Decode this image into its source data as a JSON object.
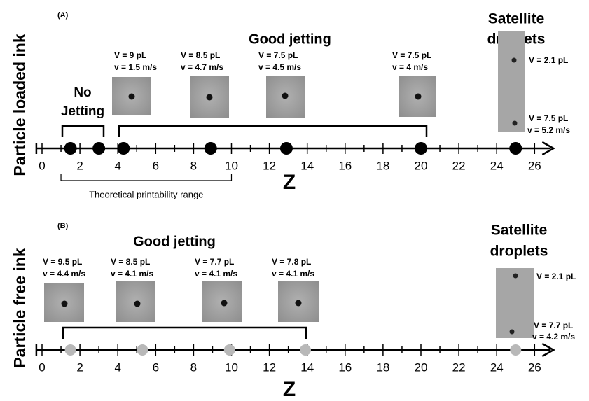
{
  "panels": [
    {
      "type": "number-line",
      "label": "(A)",
      "side_label": "Particle loaded ink",
      "axis_label": "Z",
      "xlim": [
        -0.3,
        27
      ],
      "xticks": [
        0,
        2,
        4,
        6,
        8,
        10,
        12,
        14,
        16,
        18,
        20,
        22,
        24,
        26
      ],
      "minor_xticks": [
        1,
        3,
        5,
        7,
        9,
        11,
        13,
        15,
        17,
        19,
        21,
        23,
        25
      ],
      "points": [
        1.5,
        3,
        4.3,
        8.9,
        12.9,
        20,
        25
      ],
      "point_color": "#000000",
      "groups": [
        {
          "label": [
            "No",
            "Jetting"
          ]
        },
        {
          "label": [
            "Good jetting"
          ]
        }
      ],
      "drops": [
        {
          "V": "V = 9 pL",
          "v": "v = 1.5 m/s"
        },
        {
          "V": "V = 8.5 pL",
          "v": "v = 4.7 m/s"
        },
        {
          "V": "V = 7.5 pL",
          "v": "v = 4.5 m/s"
        },
        {
          "V": "V = 7.5 pL",
          "v": "v = 4 m/s"
        }
      ],
      "satellite": {
        "title": [
          "Satellite",
          "droplets"
        ],
        "top": "V = 2.1 pL",
        "bottom": [
          "V = 7.5 pL",
          "v = 5.2 m/s"
        ]
      },
      "range": {
        "values": [
          1,
          10
        ],
        "label": "Theoretical printability range"
      }
    },
    {
      "type": "number-line",
      "label": "(B)",
      "side_label": "Particle free ink",
      "axis_label": "Z",
      "xlim": [
        -0.3,
        27
      ],
      "xticks": [
        0,
        2,
        4,
        6,
        8,
        10,
        12,
        14,
        16,
        18,
        20,
        22,
        24,
        26
      ],
      "minor_xticks": [
        1,
        3,
        5,
        7,
        9,
        11,
        13,
        15,
        17,
        19,
        21,
        23,
        25
      ],
      "points": [
        1.5,
        5.3,
        9.9,
        13.9,
        25
      ],
      "point_color": "#b8b8b8",
      "groups": [
        {
          "label": [
            "Good jetting"
          ]
        }
      ],
      "drops": [
        {
          "V": "V = 9.5 pL",
          "v": "v = 4.4 m/s"
        },
        {
          "V": "V = 8.5 pL",
          "v": "v = 4.1 m/s"
        },
        {
          "V": "V = 7.7 pL",
          "v": "v = 4.1 m/s"
        },
        {
          "V": "V = 7.8 pL",
          "v": "v = 4.1 m/s"
        }
      ],
      "satellite": {
        "title": [
          "Satellite",
          "droplets"
        ],
        "top": "V = 2.1 pL",
        "bottom": [
          "V = 7.7 pL",
          "v = 4.2 m/s"
        ]
      }
    }
  ]
}
